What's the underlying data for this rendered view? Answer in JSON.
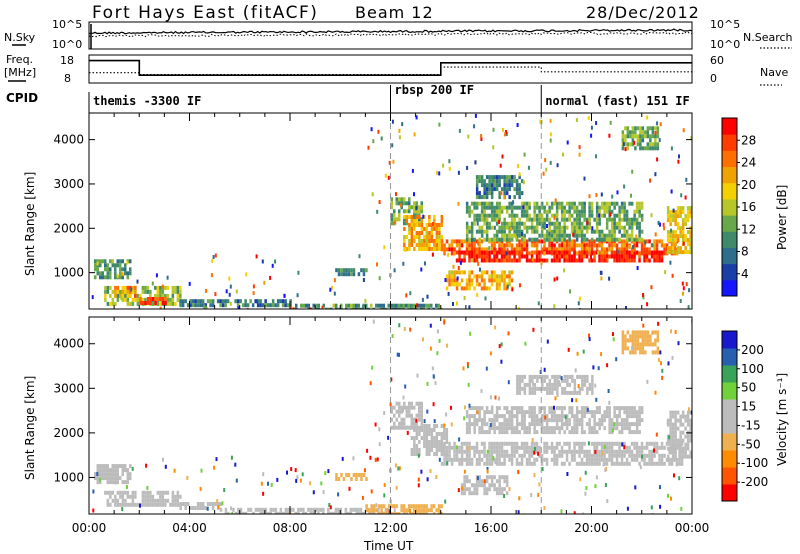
{
  "header": {
    "radar": "Fort Hays East (fitACF)",
    "beam": "Beam 12",
    "date": "28/Dec/2012"
  },
  "side_labels": {
    "nsky": "N.Sky",
    "freq_line1": "Freq.",
    "freq_line2": "[MHz]",
    "cpid": "CPID",
    "nsearch": "N.Search",
    "nave": "Nave"
  },
  "top_axis_labels": {
    "noise_top": "10^5",
    "noise_bottom": "10^0",
    "noise_top_right": "10^5",
    "noise_bottom_right": "10^0",
    "freq_top": "18",
    "freq_bottom": "8",
    "nave_top": "60",
    "nave_bottom": "0"
  },
  "cpid_segments": [
    {
      "label": "themis -3300 IF",
      "start_hour": 0
    },
    {
      "label": "rbsp 200 IF",
      "start_hour": 12
    },
    {
      "label": "normal (fast) 151 IF",
      "start_hour": 18
    }
  ],
  "colors": {
    "power": [
      "#1515ff",
      "#1a3ea8",
      "#2e6e8c",
      "#3f8a6a",
      "#68a84a",
      "#b7c72a",
      "#f6cf00",
      "#f0a300",
      "#ff7000",
      "#ff3d00",
      "#ff0000"
    ],
    "velocity": [
      "#ff0000",
      "#ff5500",
      "#ff8c00",
      "#f0b050",
      "#bcbcbc",
      "#bcbcbc",
      "#6fd23a",
      "#3aa35a",
      "#2860b0",
      "#1818cc"
    ]
  },
  "chart_data": [
    {
      "type": "line",
      "title": "N.Sky / N.Search noise",
      "y_scale": "log",
      "ylim": [
        1,
        100000
      ],
      "series": [
        {
          "name": "N.Sky",
          "style": "solid"
        },
        {
          "name": "N.Search",
          "style": "dotted"
        }
      ]
    },
    {
      "type": "line",
      "title": "Freq. / Nave",
      "ylim": [
        8,
        18
      ],
      "y2lim": [
        0,
        60
      ],
      "series": [
        {
          "name": "Freq.",
          "style": "solid",
          "x_hours": [
            0,
            2,
            2,
            14,
            14,
            24
          ],
          "y": [
            16,
            16,
            10.8,
            10.8,
            15.2,
            15.2
          ]
        },
        {
          "name": "Nave",
          "style": "dotted",
          "x_hours": [
            0,
            2,
            2,
            14,
            14,
            18,
            18,
            24
          ],
          "y": [
            22,
            22,
            18,
            18,
            34,
            34,
            24,
            24
          ]
        }
      ]
    },
    {
      "type": "heatmap",
      "ylabel": "Slant Range [km]",
      "xlim_hours": [
        0,
        24
      ],
      "ylim_km": [
        180,
        4600
      ],
      "y_ticks": [
        1000,
        2000,
        3000,
        4000
      ],
      "colorbar_label": "Power [dB]",
      "colorbar_ticks": [
        "4",
        "8",
        "12",
        "16",
        "20",
        "24",
        "28"
      ],
      "colorbar_range": [
        0,
        30
      ],
      "regions": [
        {
          "t0": 0.2,
          "t1": 1.6,
          "r0": 900,
          "r1": 1300,
          "value": 10
        },
        {
          "t0": 0.6,
          "t1": 3.6,
          "r0": 300,
          "r1": 700,
          "value": 14
        },
        {
          "t0": 2.0,
          "t1": 3.0,
          "r0": 300,
          "r1": 450,
          "value": 26
        },
        {
          "t0": 1.0,
          "t1": 1.8,
          "r0": 500,
          "r1": 700,
          "value": 22
        },
        {
          "t0": 3.6,
          "t1": 8.0,
          "r0": 250,
          "r1": 400,
          "value": 8
        },
        {
          "t0": 8.0,
          "t1": 14.0,
          "r0": 200,
          "r1": 300,
          "value": 10
        },
        {
          "t0": 9.8,
          "t1": 11.0,
          "r0": 1000,
          "r1": 1100,
          "value": 8
        },
        {
          "t0": 12.0,
          "t1": 13.2,
          "r0": 2100,
          "r1": 2700,
          "value": 12
        },
        {
          "t0": 12.5,
          "t1": 14.0,
          "r0": 1500,
          "r1": 2300,
          "value": 20
        },
        {
          "t0": 14.0,
          "t1": 23.4,
          "r0": 1400,
          "r1": 1750,
          "value": 24
        },
        {
          "t0": 14.6,
          "t1": 22.8,
          "r0": 1300,
          "r1": 1500,
          "value": 28
        },
        {
          "t0": 15.0,
          "t1": 22.0,
          "r0": 1700,
          "r1": 2600,
          "value": 12
        },
        {
          "t0": 14.2,
          "t1": 16.8,
          "r0": 650,
          "r1": 1050,
          "value": 20
        },
        {
          "t0": 15.4,
          "t1": 17.2,
          "r0": 2700,
          "r1": 3200,
          "value": 8
        },
        {
          "t0": 23.0,
          "t1": 24.0,
          "r0": 1500,
          "r1": 2500,
          "value": 18
        },
        {
          "t0": 21.2,
          "t1": 22.6,
          "r0": 3800,
          "r1": 4300,
          "value": 12
        }
      ]
    },
    {
      "type": "heatmap",
      "ylabel": "Slant Range [km]",
      "xlabel": "Time UT",
      "xlim_hours": [
        0,
        24
      ],
      "ylim_km": [
        180,
        4600
      ],
      "y_ticks": [
        1000,
        2000,
        3000,
        4000
      ],
      "x_ticks": [
        "00:00",
        "04:00",
        "08:00",
        "12:00",
        "16:00",
        "20:00",
        "00:00"
      ],
      "colorbar_label": "Velocity [m s⁻¹]",
      "colorbar_ticks": [
        "-200",
        "-100",
        "-50",
        "-15",
        "15",
        "50",
        "100",
        "200"
      ],
      "colorbar_range": [
        -250,
        250
      ],
      "regions": [
        {
          "t0": 0.2,
          "t1": 1.6,
          "r0": 900,
          "r1": 1300,
          "value": 0
        },
        {
          "t0": 0.6,
          "t1": 3.6,
          "r0": 350,
          "r1": 700,
          "value": 30
        },
        {
          "t0": 3.6,
          "t1": 5.2,
          "r0": 300,
          "r1": 450,
          "value": 30
        },
        {
          "t0": 5.2,
          "t1": 12.0,
          "r0": 200,
          "r1": 320,
          "value": 25
        },
        {
          "t0": 9.8,
          "t1": 11.0,
          "r0": 1000,
          "r1": 1100,
          "value": -60
        },
        {
          "t0": 11.0,
          "t1": 14.0,
          "r0": 200,
          "r1": 400,
          "value": -60
        },
        {
          "t0": 12.0,
          "t1": 13.2,
          "r0": 2100,
          "r1": 2700,
          "value": 0
        },
        {
          "t0": 12.8,
          "t1": 14.2,
          "r0": 1500,
          "r1": 2200,
          "value": 30
        },
        {
          "t0": 14.0,
          "t1": 23.6,
          "r0": 1300,
          "r1": 1800,
          "value": 0
        },
        {
          "t0": 14.8,
          "t1": 16.6,
          "r0": 650,
          "r1": 1050,
          "value": 0
        },
        {
          "t0": 15.0,
          "t1": 22.0,
          "r0": 2000,
          "r1": 2600,
          "value": 0
        },
        {
          "t0": 17.0,
          "t1": 20.0,
          "r0": 2900,
          "r1": 3300,
          "value": 0
        },
        {
          "t0": 23.0,
          "t1": 24.0,
          "r0": 1500,
          "r1": 2500,
          "value": 0
        },
        {
          "t0": 21.2,
          "t1": 22.6,
          "r0": 3800,
          "r1": 4300,
          "value": -80
        }
      ]
    }
  ]
}
